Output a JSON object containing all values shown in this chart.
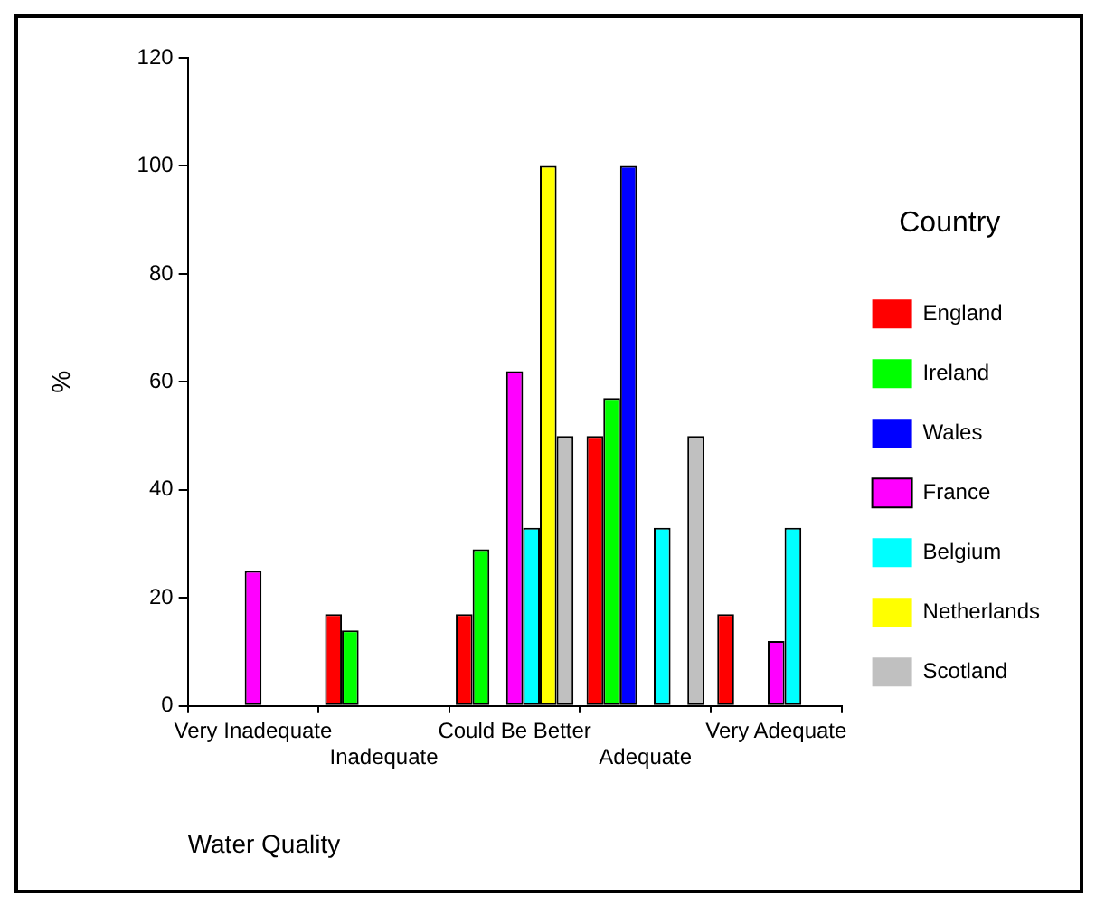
{
  "chart_data": {
    "type": "bar",
    "xlabel": "Water Quality",
    "ylabel": "%",
    "legend_title": "Country",
    "categories": [
      "Very Inadequate",
      "Inadequate",
      "Could Be Better",
      "Adequate",
      "Very Adequate"
    ],
    "series": [
      {
        "name": "England",
        "color": "#ff0000",
        "values": [
          0,
          17,
          17,
          50,
          17
        ]
      },
      {
        "name": "Ireland",
        "color": "#00ff00",
        "values": [
          0,
          14,
          29,
          57,
          0
        ]
      },
      {
        "name": "Wales",
        "color": "#0000ff",
        "values": [
          0,
          0,
          0,
          100,
          0
        ]
      },
      {
        "name": "France",
        "color": "#ff00ff",
        "values": [
          25,
          0,
          62,
          0,
          12
        ]
      },
      {
        "name": "Belgium",
        "color": "#00ffff",
        "values": [
          0,
          0,
          33,
          33,
          33
        ]
      },
      {
        "name": "Netherlands",
        "color": "#ffff00",
        "values": [
          0,
          0,
          100,
          0,
          0
        ]
      },
      {
        "name": "Scotland",
        "color": "#c0c0c0",
        "values": [
          0,
          0,
          50,
          50,
          0
        ]
      }
    ],
    "ylim": [
      0,
      120
    ],
    "yticks": [
      0,
      20,
      40,
      60,
      80,
      100,
      120
    ],
    "grid": false,
    "legend": "right"
  }
}
